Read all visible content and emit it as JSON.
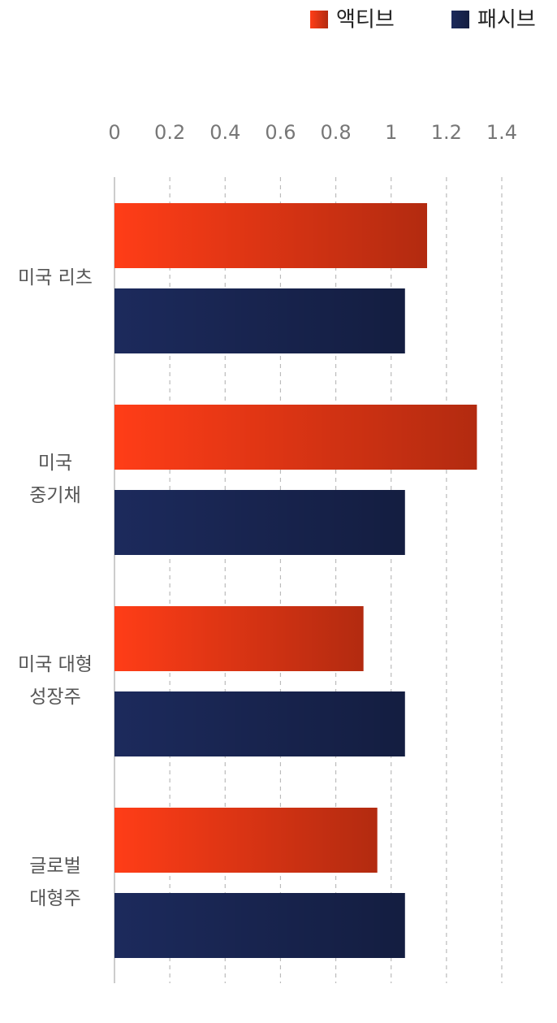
{
  "chart_data": {
    "type": "bar",
    "orientation": "horizontal",
    "categories": [
      "미국 리츠",
      "미국\n중기채",
      "미국 대형\n성장주",
      "글로벌\n대형주"
    ],
    "series": [
      {
        "name": "액티브",
        "color": "#ff3d17",
        "values": [
          1.13,
          1.31,
          0.9,
          0.95
        ]
      },
      {
        "name": "패시브",
        "color": "#1c2a5c",
        "values": [
          1.05,
          1.05,
          1.05,
          1.05
        ]
      }
    ],
    "xlim": [
      0,
      1.4
    ],
    "xticks": [
      0,
      0.2,
      0.4,
      0.6,
      0.8,
      1,
      1.2,
      1.4
    ],
    "grid": true,
    "legend": "top-right"
  }
}
